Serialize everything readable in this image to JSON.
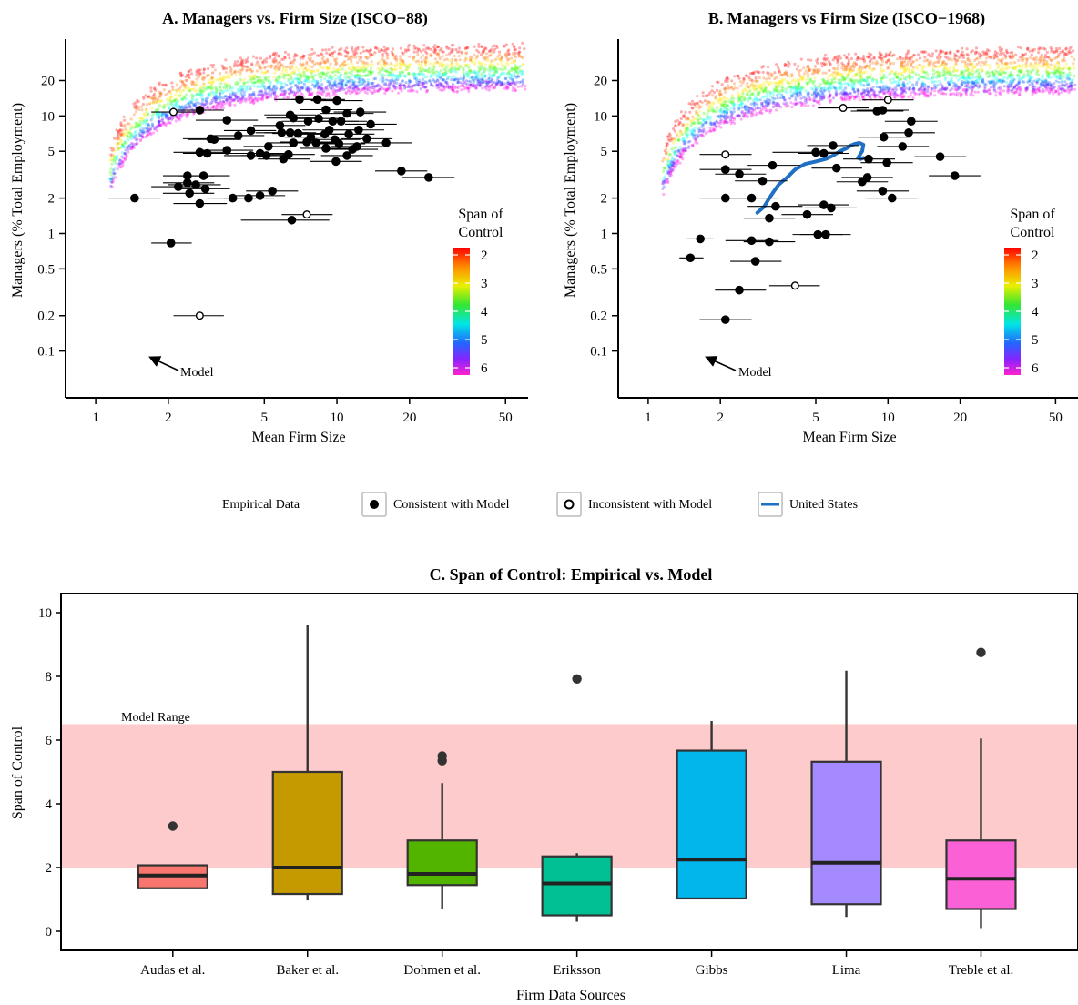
{
  "legend": {
    "title": "Empirical Data",
    "items": [
      {
        "label": "Consistent with Model",
        "kind": "filled"
      },
      {
        "label": "Inconsistent with Model",
        "kind": "open"
      },
      {
        "label": "United States",
        "kind": "line",
        "color": "#1f6fc4"
      }
    ]
  },
  "chart_data": [
    {
      "panel": "A",
      "type": "scatter",
      "title": "A.  Managers vs. Firm Size  (ISCO−88)",
      "xlabel": "Mean Firm Size",
      "ylabel": "Managers (% Total Employment)",
      "xscale": "log",
      "yscale": "log",
      "xlim": [
        0.75,
        62
      ],
      "ylim": [
        0.04,
        45
      ],
      "xticks": [
        1,
        2,
        5,
        10,
        20,
        50
      ],
      "xtick_labels": [
        "1",
        "2",
        "5",
        "10",
        "20",
        "50"
      ],
      "yticks": [
        0.1,
        0.2,
        0.5,
        1,
        2,
        5,
        10,
        20
      ],
      "ytick_labels": [
        "0.1",
        "0.2",
        "0.5",
        "1",
        "2",
        "5",
        "10",
        "20"
      ],
      "colorbar": {
        "title": [
          "Span of",
          "Control"
        ],
        "ticks": [
          "2",
          "3",
          "4",
          "5",
          "6"
        ]
      },
      "annotation": "Model",
      "consistent": [
        {
          "x": 2.7,
          "y": 11.2,
          "lo": 2.2,
          "hi": 3.4
        },
        {
          "x": 3.5,
          "y": 9.2,
          "lo": 2.6,
          "hi": 4.7
        },
        {
          "x": 7.0,
          "y": 13.8,
          "lo": 5.5,
          "hi": 9.0
        },
        {
          "x": 8.3,
          "y": 13.8,
          "lo": 6.5,
          "hi": 10.8
        },
        {
          "x": 10.0,
          "y": 13.5,
          "lo": 7.8,
          "hi": 12.8
        },
        {
          "x": 9.0,
          "y": 11.3,
          "lo": 7.0,
          "hi": 11.6
        },
        {
          "x": 11.0,
          "y": 10.5,
          "lo": 8.5,
          "hi": 14.2
        },
        {
          "x": 12.5,
          "y": 10.8,
          "lo": 9.7,
          "hi": 16.0
        },
        {
          "x": 6.4,
          "y": 10.2,
          "lo": 5.0,
          "hi": 8.2
        },
        {
          "x": 6.6,
          "y": 9.6,
          "lo": 5.1,
          "hi": 8.5
        },
        {
          "x": 7.6,
          "y": 9.0,
          "lo": 5.9,
          "hi": 9.8
        },
        {
          "x": 8.4,
          "y": 9.5,
          "lo": 6.5,
          "hi": 10.8
        },
        {
          "x": 9.6,
          "y": 9.0,
          "lo": 7.5,
          "hi": 12.3
        },
        {
          "x": 10.4,
          "y": 9.0,
          "lo": 8.1,
          "hi": 13.3
        },
        {
          "x": 13.8,
          "y": 8.5,
          "lo": 10.8,
          "hi": 17.7
        },
        {
          "x": 5.8,
          "y": 8.3,
          "lo": 4.5,
          "hi": 7.4
        },
        {
          "x": 9.3,
          "y": 7.6,
          "lo": 7.2,
          "hi": 11.9
        },
        {
          "x": 12.3,
          "y": 7.6,
          "lo": 9.6,
          "hi": 15.7
        },
        {
          "x": 4.4,
          "y": 7.5,
          "lo": 3.4,
          "hi": 5.6
        },
        {
          "x": 5.9,
          "y": 7.2,
          "lo": 4.6,
          "hi": 7.6
        },
        {
          "x": 6.4,
          "y": 7.2,
          "lo": 5.0,
          "hi": 8.2
        },
        {
          "x": 6.9,
          "y": 7.1,
          "lo": 5.4,
          "hi": 8.8
        },
        {
          "x": 8.9,
          "y": 7.0,
          "lo": 6.9,
          "hi": 11.4
        },
        {
          "x": 11.2,
          "y": 7.0,
          "lo": 8.7,
          "hi": 14.3
        },
        {
          "x": 3.9,
          "y": 6.8,
          "lo": 3.0,
          "hi": 5.0
        },
        {
          "x": 7.8,
          "y": 6.6,
          "lo": 6.1,
          "hi": 10.0
        },
        {
          "x": 9.8,
          "y": 6.3,
          "lo": 7.6,
          "hi": 12.5
        },
        {
          "x": 3.0,
          "y": 6.4,
          "lo": 2.3,
          "hi": 3.8
        },
        {
          "x": 3.1,
          "y": 6.3,
          "lo": 2.4,
          "hi": 4.0
        },
        {
          "x": 13.3,
          "y": 6.4,
          "lo": 10.4,
          "hi": 17.0
        },
        {
          "x": 6.6,
          "y": 5.9,
          "lo": 5.1,
          "hi": 8.5
        },
        {
          "x": 7.5,
          "y": 6.0,
          "lo": 5.8,
          "hi": 9.6
        },
        {
          "x": 8.2,
          "y": 5.9,
          "lo": 6.4,
          "hi": 10.5
        },
        {
          "x": 10.2,
          "y": 5.8,
          "lo": 8.0,
          "hi": 13.1
        },
        {
          "x": 12.1,
          "y": 5.5,
          "lo": 9.4,
          "hi": 15.5
        },
        {
          "x": 16.0,
          "y": 5.9,
          "lo": 12.5,
          "hi": 20.5
        },
        {
          "x": 5.2,
          "y": 5.5,
          "lo": 4.1,
          "hi": 6.7
        },
        {
          "x": 9.0,
          "y": 5.3,
          "lo": 7.0,
          "hi": 11.5
        },
        {
          "x": 11.6,
          "y": 5.2,
          "lo": 9.0,
          "hi": 14.8
        },
        {
          "x": 2.7,
          "y": 4.9,
          "lo": 2.1,
          "hi": 3.5
        },
        {
          "x": 2.9,
          "y": 4.8,
          "lo": 2.3,
          "hi": 3.7
        },
        {
          "x": 3.5,
          "y": 5.1,
          "lo": 2.7,
          "hi": 4.5
        },
        {
          "x": 4.8,
          "y": 4.8,
          "lo": 3.7,
          "hi": 6.1
        },
        {
          "x": 5.1,
          "y": 4.6,
          "lo": 4.0,
          "hi": 6.5
        },
        {
          "x": 4.4,
          "y": 4.6,
          "lo": 3.4,
          "hi": 5.6
        },
        {
          "x": 6.3,
          "y": 4.7,
          "lo": 4.9,
          "hi": 8.1
        },
        {
          "x": 6.0,
          "y": 4.3,
          "lo": 4.7,
          "hi": 7.7
        },
        {
          "x": 9.9,
          "y": 4.1,
          "lo": 7.7,
          "hi": 12.7
        },
        {
          "x": 11.0,
          "y": 4.6,
          "lo": 8.6,
          "hi": 14.1
        },
        {
          "x": 2.4,
          "y": 3.1,
          "lo": 1.9,
          "hi": 3.1
        },
        {
          "x": 2.8,
          "y": 3.1,
          "lo": 2.2,
          "hi": 3.6
        },
        {
          "x": 2.4,
          "y": 2.7,
          "lo": 1.9,
          "hi": 3.1
        },
        {
          "x": 2.2,
          "y": 2.5,
          "lo": 1.7,
          "hi": 2.8
        },
        {
          "x": 2.6,
          "y": 2.6,
          "lo": 2.0,
          "hi": 3.3
        },
        {
          "x": 2.85,
          "y": 2.4,
          "lo": 2.2,
          "hi": 3.6
        },
        {
          "x": 2.45,
          "y": 2.2,
          "lo": 1.9,
          "hi": 3.1
        },
        {
          "x": 18.5,
          "y": 3.4,
          "lo": 14.4,
          "hi": 23.7
        },
        {
          "x": 24.0,
          "y": 3.0,
          "lo": 18.7,
          "hi": 30.7
        },
        {
          "x": 5.4,
          "y": 2.3,
          "lo": 4.2,
          "hi": 6.9
        },
        {
          "x": 3.7,
          "y": 2.0,
          "lo": 2.9,
          "hi": 4.7
        },
        {
          "x": 4.3,
          "y": 2.0,
          "lo": 3.4,
          "hi": 5.5
        },
        {
          "x": 4.8,
          "y": 2.1,
          "lo": 3.7,
          "hi": 6.1
        },
        {
          "x": 2.7,
          "y": 1.8,
          "lo": 2.1,
          "hi": 3.5
        },
        {
          "x": 1.45,
          "y": 2.0,
          "lo": 1.13,
          "hi": 1.86
        },
        {
          "x": 6.5,
          "y": 1.3,
          "lo": 4.0,
          "hi": 9.3
        },
        {
          "x": 2.05,
          "y": 0.83,
          "lo": 1.7,
          "hi": 2.5
        }
      ],
      "inconsistent": [
        {
          "x": 2.1,
          "y": 10.8,
          "lo": 1.7,
          "hi": 2.6
        },
        {
          "x": 7.5,
          "y": 1.45,
          "lo": 5.9,
          "hi": 9.6
        },
        {
          "x": 2.7,
          "y": 0.2,
          "lo": 2.1,
          "hi": 3.4
        }
      ]
    },
    {
      "panel": "B",
      "type": "scatter",
      "title": "B.  Managers vs Firm Size  (ISCO−1968)",
      "xlabel": "Mean Firm Size",
      "ylabel": "Managers (% Total Employment)",
      "xscale": "log",
      "yscale": "log",
      "xlim": [
        0.75,
        62
      ],
      "ylim": [
        0.04,
        45
      ],
      "xticks": [
        1,
        2,
        5,
        10,
        20,
        50
      ],
      "xtick_labels": [
        "1",
        "2",
        "5",
        "10",
        "20",
        "50"
      ],
      "yticks": [
        0.1,
        0.2,
        0.5,
        1,
        2,
        5,
        10,
        20
      ],
      "ytick_labels": [
        "0.1",
        "0.2",
        "0.5",
        "1",
        "2",
        "5",
        "10",
        "20"
      ],
      "colorbar": {
        "title": [
          "Span of",
          "Control"
        ],
        "ticks": [
          "2",
          "3",
          "4",
          "5",
          "6"
        ]
      },
      "annotation": "Model",
      "consistent": [
        {
          "x": 9.0,
          "y": 11.0,
          "lo": 7.0,
          "hi": 11.6
        },
        {
          "x": 9.5,
          "y": 11.2,
          "lo": 7.4,
          "hi": 12.2
        },
        {
          "x": 12.5,
          "y": 9.0,
          "lo": 9.7,
          "hi": 16.1
        },
        {
          "x": 12.2,
          "y": 7.2,
          "lo": 9.5,
          "hi": 15.7
        },
        {
          "x": 9.6,
          "y": 6.6,
          "lo": 7.5,
          "hi": 12.3
        },
        {
          "x": 11.5,
          "y": 5.5,
          "lo": 9.0,
          "hi": 14.8
        },
        {
          "x": 5.9,
          "y": 5.6,
          "lo": 4.6,
          "hi": 7.6
        },
        {
          "x": 5.0,
          "y": 4.9,
          "lo": 3.3,
          "hi": 6.5
        },
        {
          "x": 5.4,
          "y": 4.8,
          "lo": 4.2,
          "hi": 6.9
        },
        {
          "x": 16.5,
          "y": 4.5,
          "lo": 12.9,
          "hi": 21.2
        },
        {
          "x": 8.3,
          "y": 4.3,
          "lo": 6.5,
          "hi": 10.7
        },
        {
          "x": 9.9,
          "y": 4.0,
          "lo": 7.7,
          "hi": 12.7
        },
        {
          "x": 6.1,
          "y": 3.6,
          "lo": 4.8,
          "hi": 7.8
        },
        {
          "x": 3.3,
          "y": 3.8,
          "lo": 2.6,
          "hi": 4.3
        },
        {
          "x": 2.1,
          "y": 3.5,
          "lo": 1.64,
          "hi": 2.7
        },
        {
          "x": 2.4,
          "y": 3.2,
          "lo": 1.9,
          "hi": 3.1
        },
        {
          "x": 8.2,
          "y": 3.0,
          "lo": 6.4,
          "hi": 10.5
        },
        {
          "x": 7.8,
          "y": 2.75,
          "lo": 6.1,
          "hi": 10.0
        },
        {
          "x": 19.0,
          "y": 3.1,
          "lo": 14.8,
          "hi": 24.3
        },
        {
          "x": 3.0,
          "y": 2.8,
          "lo": 2.3,
          "hi": 3.8
        },
        {
          "x": 9.5,
          "y": 2.3,
          "lo": 7.4,
          "hi": 12.2
        },
        {
          "x": 10.4,
          "y": 2.0,
          "lo": 8.1,
          "hi": 13.3
        },
        {
          "x": 2.1,
          "y": 2.0,
          "lo": 1.64,
          "hi": 2.7
        },
        {
          "x": 2.7,
          "y": 2.0,
          "lo": 2.1,
          "hi": 3.5
        },
        {
          "x": 3.4,
          "y": 1.7,
          "lo": 2.6,
          "hi": 4.4
        },
        {
          "x": 5.4,
          "y": 1.75,
          "lo": 4.2,
          "hi": 6.9
        },
        {
          "x": 5.8,
          "y": 1.65,
          "lo": 4.5,
          "hi": 7.4
        },
        {
          "x": 4.6,
          "y": 1.45,
          "lo": 3.6,
          "hi": 5.9
        },
        {
          "x": 3.2,
          "y": 1.35,
          "lo": 2.5,
          "hi": 4.1
        },
        {
          "x": 5.1,
          "y": 0.98,
          "lo": 4.0,
          "hi": 6.5
        },
        {
          "x": 5.5,
          "y": 0.98,
          "lo": 4.3,
          "hi": 7.0
        },
        {
          "x": 2.7,
          "y": 0.87,
          "lo": 2.1,
          "hi": 3.5
        },
        {
          "x": 3.2,
          "y": 0.85,
          "lo": 2.5,
          "hi": 4.1
        },
        {
          "x": 1.65,
          "y": 0.9,
          "lo": 1.45,
          "hi": 1.87
        },
        {
          "x": 1.5,
          "y": 0.62,
          "lo": 1.35,
          "hi": 1.7
        },
        {
          "x": 2.8,
          "y": 0.58,
          "lo": 2.2,
          "hi": 3.6
        },
        {
          "x": 2.4,
          "y": 0.33,
          "lo": 1.9,
          "hi": 3.1
        },
        {
          "x": 2.1,
          "y": 0.185,
          "lo": 1.64,
          "hi": 2.7
        }
      ],
      "inconsistent": [
        {
          "x": 6.5,
          "y": 11.7,
          "lo": 5.1,
          "hi": 8.3
        },
        {
          "x": 10.0,
          "y": 13.7,
          "lo": 7.8,
          "hi": 12.8
        },
        {
          "x": 2.1,
          "y": 4.7,
          "lo": 1.64,
          "hi": 2.7
        },
        {
          "x": 4.1,
          "y": 0.36,
          "lo": 3.2,
          "hi": 5.2
        }
      ],
      "united_states": {
        "x": [
          2.85,
          2.95,
          3.05,
          3.15,
          3.3,
          3.5,
          3.8,
          4.1,
          4.5,
          5.0,
          5.5,
          5.9,
          6.3,
          6.7,
          7.0,
          7.3,
          7.6,
          7.9,
          7.8,
          7.5,
          7.7,
          7.9
        ],
        "y": [
          1.5,
          1.6,
          1.7,
          1.9,
          2.2,
          2.6,
          3.0,
          3.5,
          3.9,
          4.1,
          4.3,
          4.6,
          5.0,
          5.3,
          5.6,
          5.8,
          5.9,
          5.7,
          5.0,
          4.4,
          4.3,
          4.4
        ]
      }
    },
    {
      "panel": "C",
      "type": "box",
      "title": "C.  Span of Control: Empirical vs. Model",
      "xlabel": "Firm Data Sources",
      "ylabel": "Span of Control",
      "ylim": [
        -0.6,
        10.6
      ],
      "yticks": [
        0,
        2,
        4,
        6,
        8,
        10
      ],
      "ytick_labels": [
        "0",
        "2",
        "4",
        "6",
        "8",
        "10"
      ],
      "model_range": {
        "label": "Model Range",
        "lo": 2.0,
        "hi": 6.5,
        "color": "#fdcbcb"
      },
      "categories": [
        "Audas et al.",
        "Baker et al.",
        "Dohmen et al.",
        "Eriksson",
        "Gibbs",
        "Lima",
        "Treble et al."
      ],
      "boxes": [
        {
          "name": "Audas et al.",
          "color": "#f8766d",
          "wlo": 1.35,
          "q1": 1.35,
          "med": 1.75,
          "q3": 2.07,
          "whi": 2.07,
          "outliers": [
            3.3
          ]
        },
        {
          "name": "Baker et al.",
          "color": "#c49a00",
          "wlo": 0.97,
          "q1": 1.17,
          "med": 2.0,
          "q3": 5.0,
          "whi": 9.6,
          "outliers": []
        },
        {
          "name": "Dohmen et al.",
          "color": "#53b400",
          "wlo": 0.7,
          "q1": 1.45,
          "med": 1.8,
          "q3": 2.85,
          "whi": 4.65,
          "outliers": [
            5.35,
            5.5
          ]
        },
        {
          "name": "Eriksson",
          "color": "#00c094",
          "wlo": 0.3,
          "q1": 0.5,
          "med": 1.5,
          "q3": 2.35,
          "whi": 2.45,
          "outliers": [
            7.92
          ]
        },
        {
          "name": "Gibbs",
          "color": "#00b6eb",
          "wlo": 1.03,
          "q1": 1.03,
          "med": 2.25,
          "q3": 5.67,
          "whi": 6.6,
          "outliers": []
        },
        {
          "name": "Lima",
          "color": "#a58aff",
          "wlo": 0.45,
          "q1": 0.85,
          "med": 2.15,
          "q3": 5.32,
          "whi": 8.18,
          "outliers": []
        },
        {
          "name": "Treble et al.",
          "color": "#fb61d7",
          "wlo": 0.1,
          "q1": 0.7,
          "med": 1.65,
          "q3": 2.85,
          "whi": 6.05,
          "outliers": [
            8.75
          ]
        }
      ]
    }
  ]
}
